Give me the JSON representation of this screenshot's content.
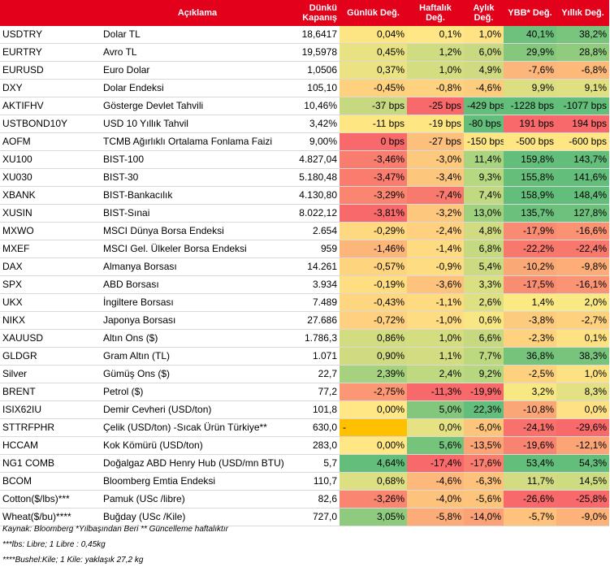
{
  "header": {
    "code": "",
    "aciklama": "Açıklama",
    "dunku_line1": "Dünkü",
    "dunku_line2": "Kapanış",
    "gunluk": "Günlük Değ.",
    "haftalik_line1": "Haftalık",
    "haftalik_line2": "Değ.",
    "aylik_line1": "Aylık",
    "aylik_line2": "Değ.",
    "ybb": "YBB* Değ.",
    "yillik": "Yıllık Değ."
  },
  "colors": {
    "header_bg": "#e3001b",
    "dark_green": "#63be7b",
    "light_green": "#b5d98a",
    "yellow": "#ffe084",
    "light_red": "#fba276",
    "red": "#f8696b",
    "orange": "#ffc000"
  },
  "rows": [
    {
      "code": "USDTRY",
      "desc": "Dolar TL",
      "close": "18,6417",
      "d": "0,04%",
      "w": "0,1%",
      "m": "1,0%",
      "ytd": "40,1%",
      "y": "38,2%",
      "c": [
        "#fde583",
        "#fee784",
        "#fee283",
        "#6ec17c",
        "#79c57d"
      ]
    },
    {
      "code": "EURTRY",
      "desc": "Avro TL",
      "close": "19,5978",
      "d": "0,45%",
      "w": "1,2%",
      "m": "6,0%",
      "ytd": "29,9%",
      "y": "28,8%",
      "c": [
        "#e8e283",
        "#cfdc81",
        "#c8d981",
        "#85c87d",
        "#90cb7e"
      ]
    },
    {
      "code": "EURUSD",
      "desc": "Euro Dolar",
      "close": "1,0506",
      "d": "0,37%",
      "w": "1,0%",
      "m": "4,9%",
      "ytd": "-7,6%",
      "y": "-6,8%",
      "c": [
        "#ebe383",
        "#d5dd81",
        "#d0db81",
        "#fcb57a",
        "#fcb97a"
      ]
    },
    {
      "code": "DXY",
      "desc": "Dolar Endeksi",
      "close": "105,10",
      "d": "-0,45%",
      "w": "-0,8%",
      "m": "-4,6%",
      "ytd": "9,9%",
      "y": "9,1%",
      "c": [
        "#fed17f",
        "#fed27f",
        "#fdcd7e",
        "#dbdf82",
        "#dfe082"
      ]
    },
    {
      "code": "AKTIFHV",
      "desc": "Gösterge Devlet Tahvili",
      "close": "10,46%",
      "d": "-37 bps",
      "w": "-25 bps",
      "m": "-429 bps",
      "ytd": "-1228 bps",
      "y": "-1077 bps",
      "c": [
        "#c6d980",
        "#f8696b",
        "#63be7b",
        "#63be7b",
        "#63be7b"
      ]
    },
    {
      "code": "USTBOND10Y",
      "desc": "USD 10 Yıllık Tahvil",
      "close": "3,42%",
      "d": "-11 bps",
      "w": "-19 bps",
      "m": "-80 bps",
      "ytd": "191 bps",
      "y": "194 bps",
      "c": [
        "#fee783",
        "#fee783",
        "#63be7b",
        "#f8696b",
        "#f8696b"
      ]
    },
    {
      "code": "AOFM",
      "desc": "TCMB Ağırlıklı Ortalama Fonlama Faizi",
      "close": "9,00%",
      "d": "0 bps",
      "w": "-27 bps",
      "m": "-150 bps",
      "ytd": "-500 bps",
      "y": "-600 bps",
      "c": [
        "#f8696b",
        "#fdc07c",
        "#fee783",
        "#fee783",
        "#fee783"
      ]
    },
    {
      "code": "XU100",
      "desc": "BIST-100",
      "close": "4.827,04",
      "d": "-3,46%",
      "w": "-3,0%",
      "m": "11,4%",
      "ytd": "159,8%",
      "y": "143,7%",
      "c": [
        "#f97d6f",
        "#fdca7d",
        "#a9d480",
        "#63be7b",
        "#63be7b"
      ]
    },
    {
      "code": "XU030",
      "desc": "BIST-30",
      "close": "5.180,48",
      "d": "-3,47%",
      "w": "-3,4%",
      "m": "9,3%",
      "ytd": "155,8%",
      "y": "141,6%",
      "c": [
        "#f97c6f",
        "#fdc67d",
        "#b6d881",
        "#65bf7b",
        "#64be7b"
      ]
    },
    {
      "code": "XBANK",
      "desc": "BIST-Bankacılık",
      "close": "4.130,80",
      "d": "-3,29%",
      "w": "-7,4%",
      "m": "7,4%",
      "ytd": "158,9%",
      "y": "148,4%",
      "c": [
        "#fa8570",
        "#f8796e",
        "#c1da81",
        "#64be7b",
        "#63be7b"
      ]
    },
    {
      "code": "XUSIN",
      "desc": "BIST-Sınai",
      "close": "8.022,12",
      "d": "-3,81%",
      "w": "-3,2%",
      "m": "13,0%",
      "ytd": "135,7%",
      "y": "127,8%",
      "c": [
        "#f8696b",
        "#fdc87d",
        "#9fd17f",
        "#6bc07c",
        "#6dc17c"
      ]
    },
    {
      "code": "MXWO",
      "desc": "MSCI Dünya Borsa Endeksi",
      "close": "2.654",
      "d": "-0,29%",
      "w": "-2,4%",
      "m": "4,8%",
      "ytd": "-17,9%",
      "y": "-16,6%",
      "c": [
        "#fed980",
        "#fed07f",
        "#d1db81",
        "#f98b72",
        "#fa9273"
      ]
    },
    {
      "code": "MXEF",
      "desc": "MSCI Gel. Ülkeler Borsa Endeksi",
      "close": "959",
      "d": "-1,46%",
      "w": "-1,4%",
      "m": "6,8%",
      "ytd": "-22,2%",
      "y": "-22,4%",
      "c": [
        "#fdb67a",
        "#feda80",
        "#c5d981",
        "#f8786e",
        "#f8786e"
      ]
    },
    {
      "code": "DAX",
      "desc": "Almanya Borsası",
      "close": "14.261",
      "d": "-0,57%",
      "w": "-0,9%",
      "m": "5,4%",
      "ytd": "-10,2%",
      "y": "-9,8%",
      "c": [
        "#fed47f",
        "#fedc81",
        "#ccda81",
        "#fba877",
        "#fcad78"
      ]
    },
    {
      "code": "SPX",
      "desc": "ABD Borsası",
      "close": "3.934",
      "d": "-0,19%",
      "w": "-3,6%",
      "m": "3,3%",
      "ytd": "-17,5%",
      "y": "-16,1%",
      "c": [
        "#fede81",
        "#fdc27c",
        "#dadf82",
        "#f98d72",
        "#fa9474"
      ]
    },
    {
      "code": "UKX",
      "desc": "İngiltere Borsası",
      "close": "7.489",
      "d": "-0,43%",
      "w": "-1,1%",
      "m": "2,6%",
      "ytd": "1,4%",
      "y": "2,0%",
      "c": [
        "#fed680",
        "#fedb80",
        "#dfe082",
        "#fbea84",
        "#f9e984"
      ]
    },
    {
      "code": "NIKX",
      "desc": "Japonya Borsası",
      "close": "27.686",
      "d": "-0,72%",
      "w": "-1,0%",
      "m": "0,6%",
      "ytd": "-3,8%",
      "y": "-2,7%",
      "c": [
        "#fed07f",
        "#fedc81",
        "#f8e884",
        "#fdcb7e",
        "#fed17f"
      ]
    },
    {
      "code": "XAUUSD",
      "desc": "Altın Ons ($)",
      "close": "1.786,3",
      "d": "0,86%",
      "w": "1,0%",
      "m": "6,6%",
      "ytd": "-2,3%",
      "y": "0,1%",
      "c": [
        "#d2dc81",
        "#d5dd81",
        "#c6d981",
        "#fed27f",
        "#fee183"
      ]
    },
    {
      "code": "GLDGR",
      "desc": "Gram Altın (TL)",
      "close": "1.071",
      "d": "0,90%",
      "w": "1,1%",
      "m": "7,7%",
      "ytd": "36,8%",
      "y": "38,3%",
      "c": [
        "#d0db81",
        "#d3dc81",
        "#bdd980",
        "#76c37c",
        "#78c47d"
      ]
    },
    {
      "code": "Silver",
      "desc": "Gümüş Ons ($)",
      "close": "22,7",
      "d": "2,39%",
      "w": "2,4%",
      "m": "9,2%",
      "ytd": "-2,5%",
      "y": "1,0%",
      "c": [
        "#a6d27f",
        "#bed980",
        "#b6d780",
        "#fed17f",
        "#fde283"
      ]
    },
    {
      "code": "BRENT",
      "desc": "Petrol ($)",
      "close": "77,2",
      "d": "-2,75%",
      "w": "-11,3%",
      "m": "-19,9%",
      "ytd": "3,2%",
      "y": "8,3%",
      "c": [
        "#fb9774",
        "#f8696b",
        "#f8696b",
        "#f7e884",
        "#e3e183"
      ]
    },
    {
      "code": "ISIX62IU",
      "desc": "Demir Cevheri (USD/ton)",
      "close": "101,8",
      "d": "0,00%",
      "w": "5,0%",
      "m": "22,3%",
      "ytd": "-10,8%",
      "y": "0,0%",
      "c": [
        "#fee784",
        "#83c77d",
        "#63be7b",
        "#fba677",
        "#fee184"
      ]
    },
    {
      "code": "STTRFPHR",
      "desc": "Çelik (USD/ton) -Sıcak Ürün Türkiye**",
      "close": "630,0",
      "d": "-",
      "w": "0,0%",
      "m": "-6,0%",
      "ytd": "-24,1%",
      "y": "-29,6%",
      "c": [
        "#ffc000",
        "#e6e283",
        "#fdc47c",
        "#f8716d",
        "#f8696b"
      ]
    },
    {
      "code": "HCCAM",
      "desc": "Kok Kömürü (USD/ton)",
      "close": "283,0",
      "d": "0,00%",
      "w": "5,6%",
      "m": "-13,5%",
      "ytd": "-19,6%",
      "y": "-12,1%",
      "c": [
        "#fee784",
        "#76c37c",
        "#fba476",
        "#f98371",
        "#fba577"
      ]
    },
    {
      "code": "NG1 COMB",
      "desc": "Doğalgaz ABD Henry Hub (USD/mn BTU)",
      "close": "5,7",
      "d": "4,64%",
      "w": "-17,4%",
      "m": "-17,6%",
      "ytd": "53,4%",
      "y": "54,3%",
      "c": [
        "#63be7b",
        "#f8696b",
        "#f97e70",
        "#63be7b",
        "#63be7b"
      ]
    },
    {
      "code": "BCOM",
      "desc": "Bloomberg Emtia Endeksi",
      "close": "110,7",
      "d": "0,68%",
      "w": "-4,6%",
      "m": "-6,3%",
      "ytd": "11,7%",
      "y": "14,5%",
      "c": [
        "#dcdf82",
        "#fdb87b",
        "#fdc27c",
        "#d3dc82",
        "#cddb81"
      ]
    },
    {
      "code": "Cotton($/lbs)***",
      "desc": "Pamuk (USc /libre)",
      "close": "82,6",
      "d": "-3,26%",
      "w": "-4,0%",
      "m": "-5,6%",
      "ytd": "-26,6%",
      "y": "-25,8%",
      "c": [
        "#fa8570",
        "#fdc27c",
        "#fdc47c",
        "#f8696b",
        "#f8696b"
      ]
    },
    {
      "code": "Wheat($/bu)****",
      "desc": "Buğday (USc /Kile)",
      "close": "727,0",
      "d": "3,05%",
      "w": "-5,8%",
      "m": "-14,0%",
      "ytd": "-5,7%",
      "y": "-9,0%",
      "c": [
        "#8fcb7e",
        "#fcac78",
        "#fba276",
        "#fec27c",
        "#fcb279"
      ]
    }
  ],
  "footnotes": {
    "line1": "Kaynak: Bloomberg *Yılbaşından Beri  ** Güncelleme haftalıktır",
    "line2": "***lbs: Libre; 1 Libre : 0,45kg",
    "line3": "****Bushel:Kile; 1 Kile: yaklaşık 27,2 kg"
  }
}
